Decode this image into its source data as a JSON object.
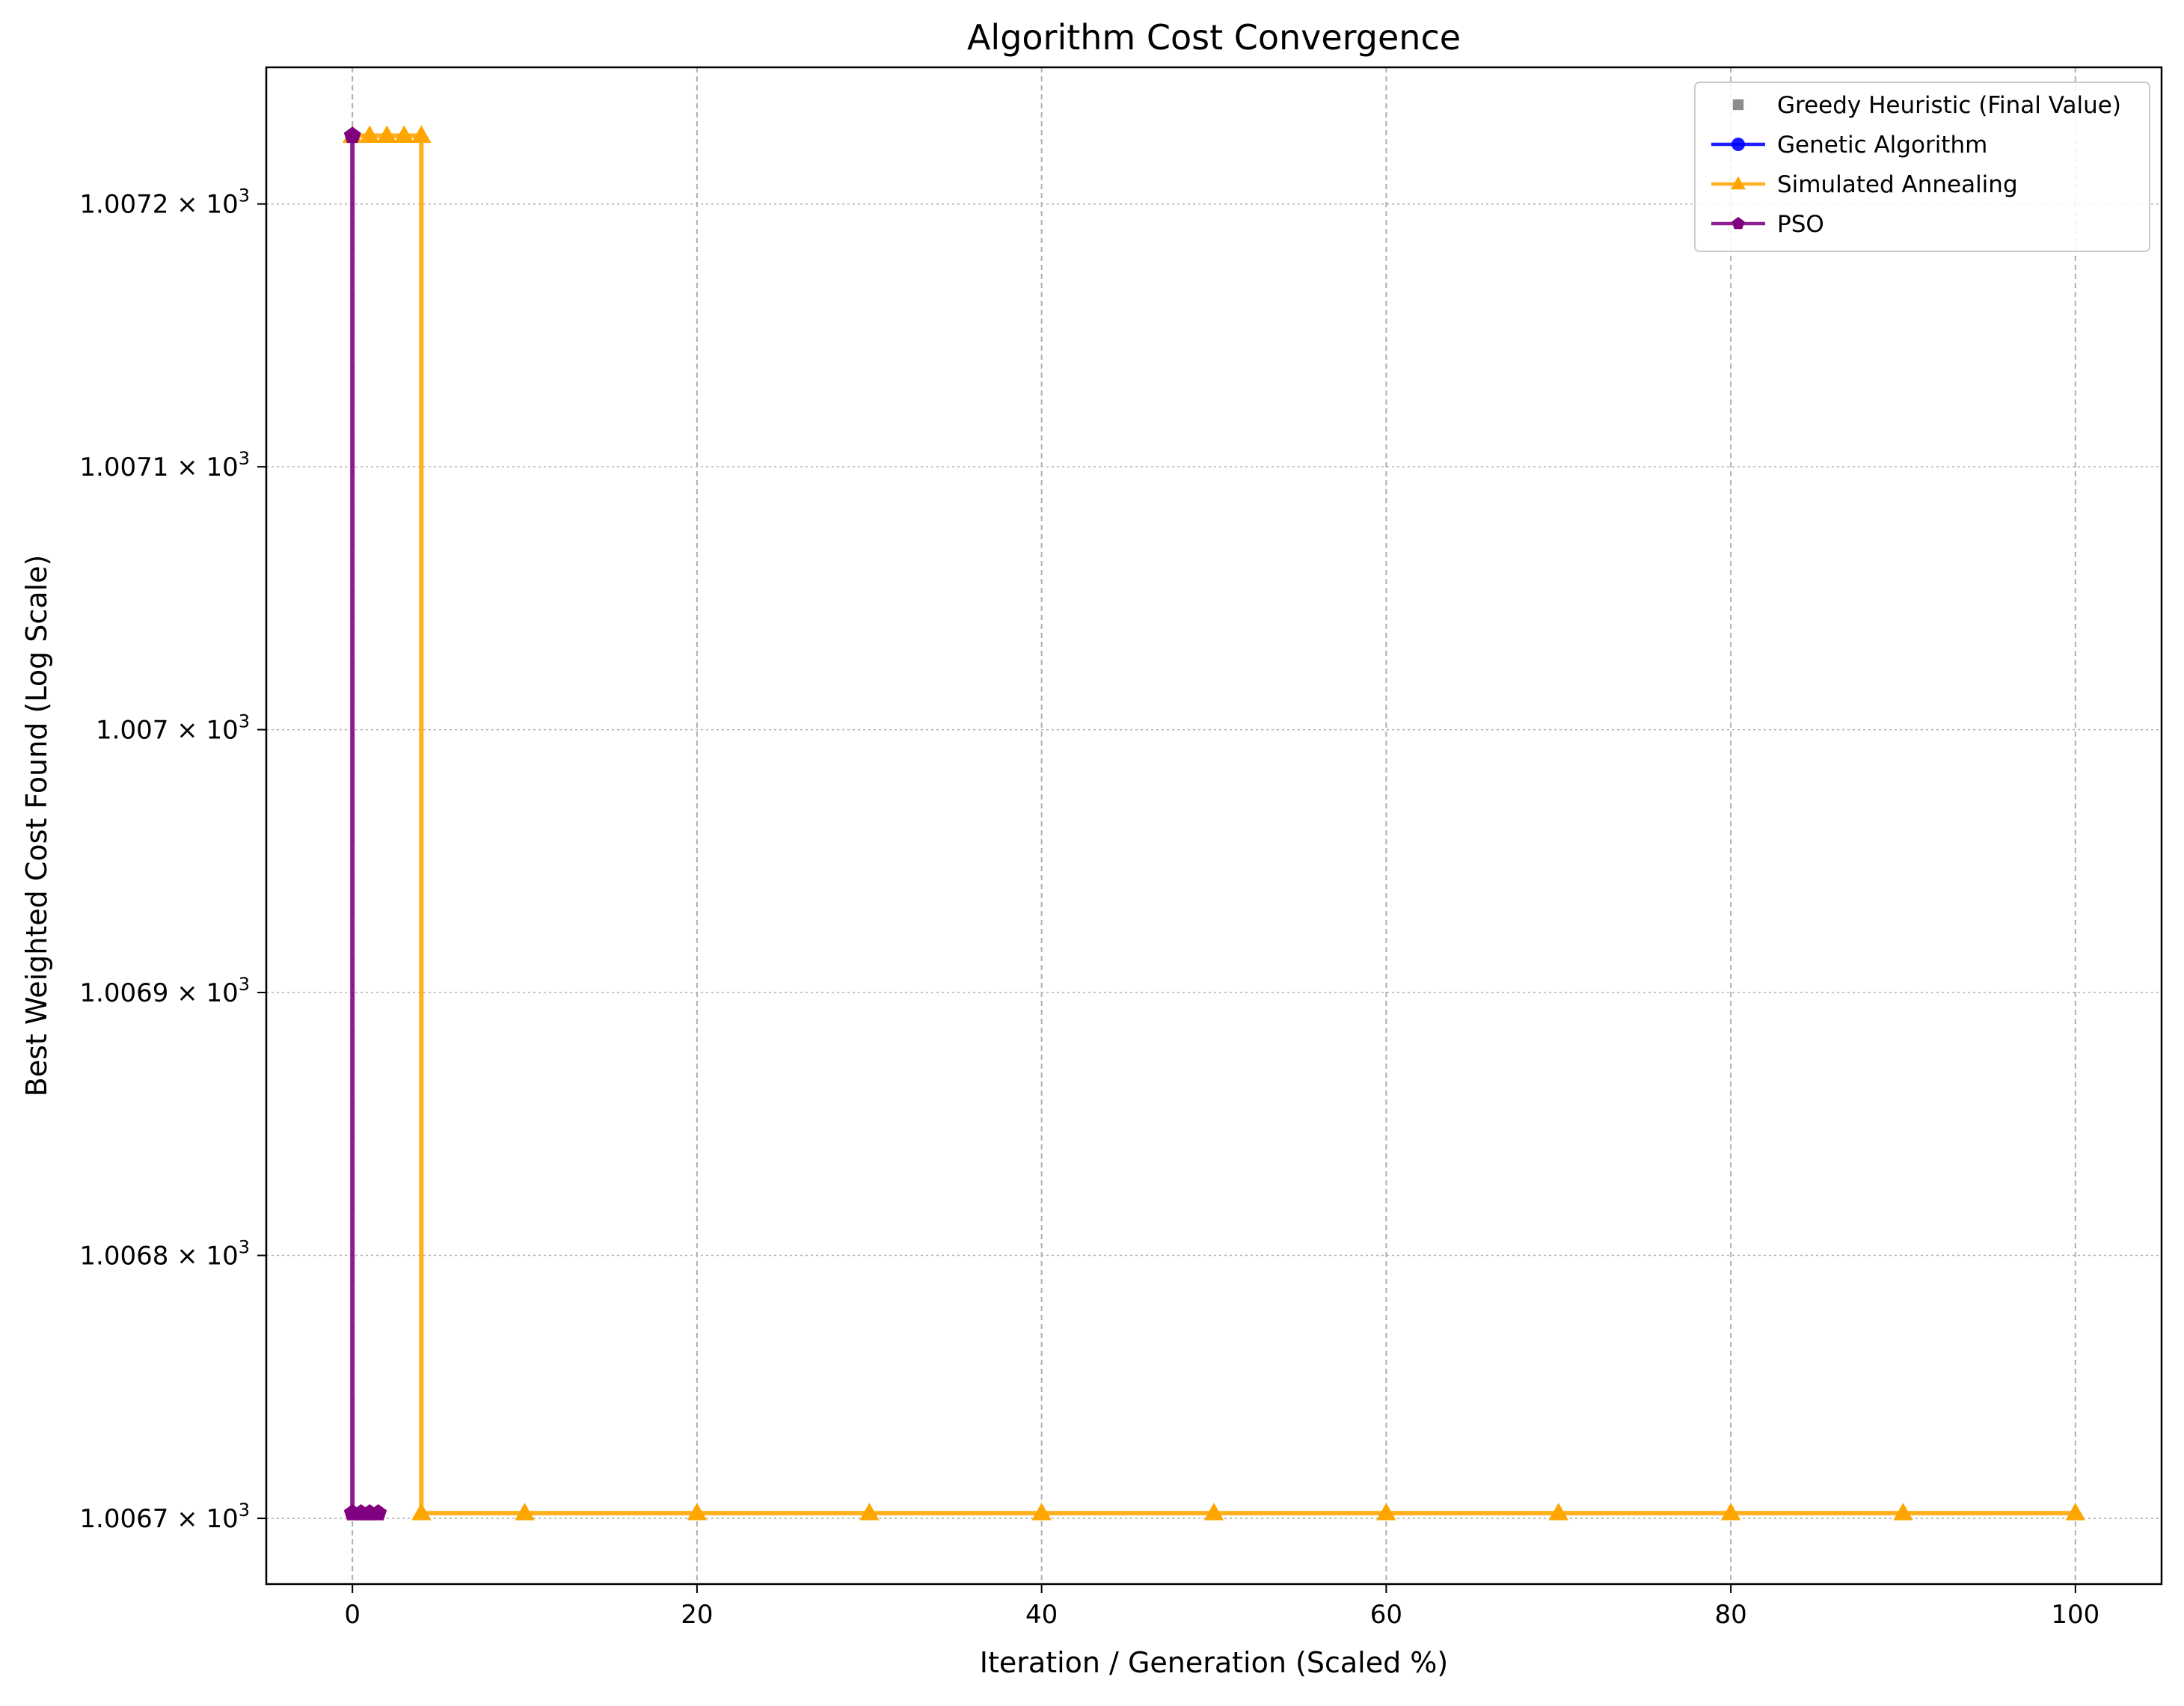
{
  "chart_data": {
    "type": "line",
    "title": "Algorithm Cost Convergence",
    "xlabel": "Iteration / Generation (Scaled %)",
    "ylabel": "Best Weighted Cost Found (Log Scale)",
    "xlim": [
      -5,
      105
    ],
    "ylim": [
      1006.675,
      1007.252
    ],
    "yscale": "log",
    "grid": true,
    "legend_position": "top-right",
    "x_ticks": [
      0,
      20,
      40,
      60,
      80,
      100
    ],
    "x_tick_labels": [
      "0",
      "20",
      "40",
      "60",
      "80",
      "100"
    ],
    "y_ticks": [
      1006.7,
      1006.8,
      1006.9,
      1007.0,
      1007.1,
      1007.2
    ],
    "y_tick_labels": [
      {
        "mantissa": "1.0067",
        "exponent": "3"
      },
      {
        "mantissa": "1.0068",
        "exponent": "3"
      },
      {
        "mantissa": "1.0069",
        "exponent": "3"
      },
      {
        "mantissa": "1.007",
        "exponent": "3"
      },
      {
        "mantissa": "1.0071",
        "exponent": "3"
      },
      {
        "mantissa": "1.0072",
        "exponent": "3"
      }
    ],
    "series": [
      {
        "name": "Greedy Heuristic (Final Value)",
        "color": "#808080",
        "marker": "square",
        "line": false,
        "x": [],
        "y": []
      },
      {
        "name": "Genetic Algorithm",
        "color": "#0000ff",
        "marker": "circle",
        "line": true,
        "x": [],
        "y": []
      },
      {
        "name": "Simulated Annealing",
        "color": "#ffa500",
        "marker": "triangle",
        "line": true,
        "x": [
          0,
          1,
          2,
          3,
          4,
          4,
          10,
          20,
          30,
          40,
          50,
          60,
          70,
          80,
          90,
          100
        ],
        "y": [
          1007.226,
          1007.226,
          1007.226,
          1007.226,
          1007.226,
          1006.702,
          1006.702,
          1006.702,
          1006.702,
          1006.702,
          1006.702,
          1006.702,
          1006.702,
          1006.702,
          1006.702,
          1006.702
        ]
      },
      {
        "name": "PSO",
        "color": "#800080",
        "marker": "pentagon",
        "line": true,
        "x": [
          0,
          0,
          0.5,
          1,
          1.5
        ],
        "y": [
          1007.226,
          1006.702,
          1006.702,
          1006.702,
          1006.702
        ]
      }
    ]
  }
}
